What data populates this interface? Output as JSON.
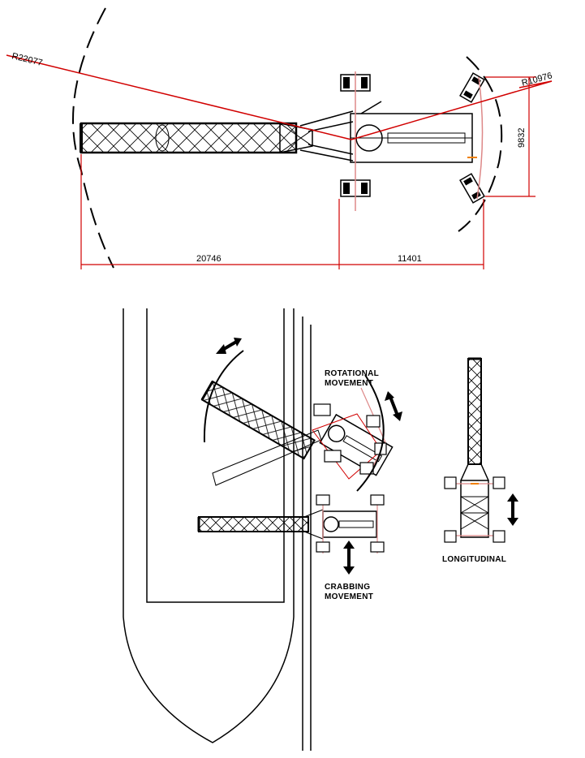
{
  "plan_view": {
    "radius_outer_label": "R22077",
    "radius_inner_label": "R10976",
    "height_label": "9832",
    "length_left_label": "20746",
    "length_right_label": "11401"
  },
  "movements": {
    "rotational_line1": "ROTATIONAL",
    "rotational_line2": "MOVEMENT",
    "crabbing_line1": "CRABBING",
    "crabbing_line2": "MOVEMENT",
    "longitudinal": "LONGITUDINAL"
  },
  "colors": {
    "line": "#000000",
    "dimension_red": "#d10000",
    "rail_pink": "#dd8888",
    "accent_orange": "#f08000"
  }
}
